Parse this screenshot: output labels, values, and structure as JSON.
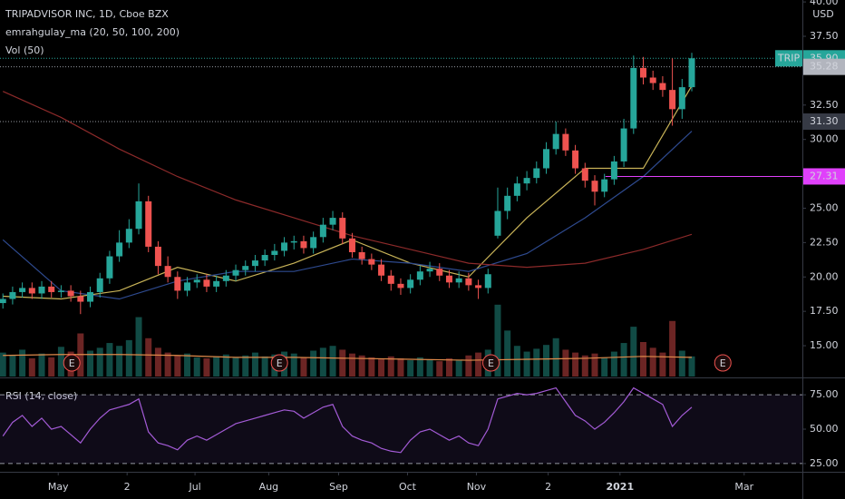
{
  "chart_data": {
    "type": "candlestick",
    "title": "TRIPADVISOR INC, 1D, Cboe BZX",
    "indicators": [
      "emrahgulay_ma (20, 50, 100, 200)",
      "Vol (50)"
    ],
    "currency": "USD",
    "up_color": "#26a69a",
    "down_color": "#ef5350",
    "xlim": [
      -0.3,
      82.4
    ],
    "xticks": [
      {
        "value": 5.7,
        "label": "May"
      },
      {
        "value": 12.8,
        "label": "2"
      },
      {
        "value": 19.8,
        "label": "Jul"
      },
      {
        "value": 27.4,
        "label": "Aug"
      },
      {
        "value": 34.6,
        "label": "Sep"
      },
      {
        "value": 41.7,
        "label": "Oct"
      },
      {
        "value": 48.8,
        "label": "Nov"
      },
      {
        "value": 56.2,
        "label": "2"
      },
      {
        "value": 63.6,
        "label": "2021"
      },
      {
        "value": 76.4,
        "label": "Mar"
      }
    ],
    "ylim": [
      12.76,
      40.14
    ],
    "yticks": [
      {
        "value": 15,
        "label": "15.00"
      },
      {
        "value": 17.5,
        "label": "17.50"
      },
      {
        "value": 20,
        "label": "20.00"
      },
      {
        "value": 22.5,
        "label": "22.50"
      },
      {
        "value": 25,
        "label": "25.00"
      },
      {
        "value": 30,
        "label": "30.00"
      },
      {
        "value": 32.5,
        "label": "32.50"
      },
      {
        "value": 37.5,
        "label": "37.50"
      },
      {
        "value": 40,
        "label": "40.00"
      }
    ],
    "open": [
      18.1,
      18.4,
      18.9,
      19.2,
      18.8,
      19.3,
      18.9,
      19.0,
      18.6,
      18.2,
      18.9,
      19.9,
      21.5,
      22.5,
      23.5,
      25.5,
      22.2,
      20.8,
      20.0,
      19.0,
      19.6,
      19.8,
      19.3,
      19.7,
      20.1,
      20.5,
      20.8,
      21.2,
      21.6,
      21.9,
      22.5,
      22.6,
      22.1,
      22.9,
      23.8,
      24.3,
      22.8,
      21.8,
      21.3,
      20.9,
      20.1,
      19.5,
      19.2,
      19.8,
      20.4,
      20.6,
      20.1,
      19.6,
      19.9,
      19.4,
      19.2,
      23.0,
      24.8,
      25.9,
      26.8,
      27.2,
      27.9,
      29.3,
      30.4,
      29.2,
      27.9,
      27.0,
      26.2,
      27.1,
      28.4,
      30.8,
      35.2,
      34.5,
      34.1,
      33.6,
      32.2,
      33.8
    ],
    "high": [
      18.8,
      19.3,
      19.6,
      19.6,
      19.7,
      19.7,
      19.4,
      19.4,
      19.0,
      19.3,
      20.3,
      21.9,
      23.4,
      24.2,
      26.8,
      25.9,
      22.6,
      21.5,
      20.4,
      20.0,
      20.2,
      20.2,
      20.1,
      20.5,
      20.9,
      21.2,
      21.6,
      22.0,
      22.4,
      22.9,
      23.0,
      23.0,
      23.3,
      24.3,
      24.8,
      24.7,
      23.2,
      22.2,
      21.7,
      21.3,
      20.5,
      19.9,
      20.2,
      20.8,
      21.1,
      21.0,
      20.5,
      20.4,
      20.3,
      19.8,
      20.6,
      26.5,
      26.5,
      27.3,
      27.7,
      28.4,
      29.8,
      31.3,
      30.8,
      29.6,
      28.3,
      27.4,
      27.5,
      28.8,
      31.5,
      36.1,
      36.0,
      35.0,
      34.6,
      35.9,
      34.4,
      36.3
    ],
    "low": [
      17.7,
      18.0,
      18.5,
      18.4,
      18.4,
      18.5,
      18.5,
      18.2,
      17.3,
      17.8,
      18.5,
      19.5,
      21.1,
      22.1,
      23.1,
      21.8,
      20.2,
      19.6,
      18.4,
      18.6,
      19.2,
      18.9,
      18.9,
      19.3,
      19.7,
      20.1,
      20.4,
      20.8,
      21.2,
      21.5,
      22.0,
      21.7,
      21.7,
      22.5,
      23.4,
      22.4,
      21.4,
      20.9,
      20.5,
      19.7,
      19.0,
      18.7,
      18.8,
      19.4,
      20.0,
      19.7,
      19.2,
      19.2,
      19.0,
      18.4,
      18.8,
      22.8,
      24.2,
      25.5,
      26.3,
      26.8,
      27.5,
      28.9,
      28.8,
      27.5,
      26.5,
      25.2,
      25.8,
      26.7,
      28.0,
      30.4,
      34.0,
      33.6,
      33.1,
      31.0,
      31.5,
      33.5
    ],
    "close": [
      18.4,
      18.9,
      19.2,
      18.8,
      19.3,
      18.9,
      19.0,
      18.6,
      18.2,
      18.9,
      19.9,
      21.5,
      22.5,
      23.5,
      25.5,
      22.2,
      20.8,
      20.0,
      19.0,
      19.6,
      19.8,
      19.3,
      19.7,
      20.1,
      20.5,
      20.8,
      21.2,
      21.6,
      21.9,
      22.5,
      22.6,
      22.1,
      22.9,
      23.8,
      24.3,
      22.8,
      21.8,
      21.3,
      20.9,
      20.1,
      19.5,
      19.2,
      19.8,
      20.4,
      20.6,
      20.1,
      19.6,
      19.9,
      19.4,
      19.2,
      20.2,
      24.8,
      25.9,
      26.8,
      27.2,
      27.9,
      29.3,
      30.4,
      29.2,
      27.9,
      27.0,
      26.2,
      27.1,
      28.4,
      30.8,
      35.2,
      34.5,
      34.1,
      33.6,
      32.2,
      33.8,
      35.9
    ],
    "ma_lines": [
      {
        "color": "#c9b458",
        "x": [
          0,
          6,
          12,
          18,
          24,
          30,
          36,
          42,
          48,
          54,
          60,
          66,
          71
        ],
        "values": [
          18.6,
          18.4,
          19.0,
          20.7,
          19.7,
          21.0,
          22.7,
          21.0,
          20.0,
          24.3,
          27.9,
          27.9,
          33.9
        ]
      },
      {
        "color": "#2e4a8f",
        "x": [
          0,
          6,
          12,
          18,
          24,
          30,
          36,
          42,
          48,
          54,
          60,
          66,
          71
        ],
        "values": [
          22.7,
          19.0,
          18.4,
          19.7,
          20.4,
          20.4,
          21.3,
          21.0,
          20.4,
          21.7,
          24.3,
          27.3,
          30.6
        ]
      },
      {
        "color": "#8c2a2a",
        "x": [
          0,
          6,
          12,
          18,
          24,
          30,
          36,
          42,
          48,
          54,
          60,
          66,
          71
        ],
        "values": [
          33.5,
          31.6,
          29.3,
          27.3,
          25.6,
          24.3,
          23.0,
          22.0,
          21.0,
          20.7,
          21.0,
          22.0,
          23.1
        ]
      }
    ],
    "volume": {
      "vlim": [
        0,
        9
      ],
      "values": [
        2.5,
        2.2,
        2.8,
        1.9,
        2.4,
        2.0,
        3.1,
        2.6,
        4.5,
        2.7,
        3.0,
        3.5,
        3.2,
        3.8,
        6.2,
        4.0,
        3.0,
        2.5,
        2.2,
        2.4,
        2.0,
        1.9,
        2.1,
        2.3,
        2.0,
        2.2,
        2.5,
        2.1,
        2.3,
        2.6,
        2.4,
        2.0,
        2.7,
        3.0,
        3.2,
        2.8,
        2.4,
        2.2,
        2.0,
        1.8,
        2.1,
        1.9,
        1.7,
        2.0,
        1.8,
        1.6,
        1.9,
        1.7,
        2.2,
        2.5,
        2.8,
        7.5,
        4.8,
        3.2,
        2.6,
        2.9,
        3.3,
        4.0,
        2.8,
        2.5,
        2.2,
        2.4,
        2.0,
        2.6,
        3.5,
        5.2,
        3.6,
        3.0,
        2.5,
        5.8,
        2.7,
        2.1
      ],
      "ma": {
        "color": "#e08a4a",
        "x": [
          0,
          6,
          12,
          18,
          24,
          30,
          36,
          42,
          48,
          54,
          60,
          66,
          71
        ],
        "values": [
          2.2,
          2.3,
          2.3,
          2.2,
          2.0,
          2.0,
          1.9,
          1.8,
          1.7,
          1.8,
          1.9,
          2.1,
          2.0
        ]
      }
    },
    "price_labels": [
      {
        "label": "TRIP",
        "value": 35.9,
        "value_label": "35.90",
        "color": "#26a69a",
        "text_color": "#ffffff",
        "line": "dotted"
      },
      {
        "value": 35.28,
        "value_label": "35.28",
        "color": "#b2b5be",
        "text_color": "#131722",
        "line": "dotted"
      },
      {
        "value": 31.3,
        "value_label": "31.30",
        "color": "#363a45",
        "text_color": "#d1d4dc",
        "line": "dotted"
      },
      {
        "value": 27.31,
        "value_label": "27.31",
        "color": "#e040fb",
        "text_color": "#ffffff",
        "line": "solid",
        "from": 62.1
      }
    ],
    "earnings": {
      "label": "E",
      "color": "#ef5350",
      "x": [
        7.1,
        28.5,
        50.3,
        74.2
      ]
    },
    "rsi": {
      "title": "RSI (14, close)",
      "color": "#a35bd6",
      "ylim": [
        19,
        85
      ],
      "yticks": [
        {
          "value": 25,
          "label": "25.00"
        },
        {
          "value": 50,
          "label": "50.00"
        },
        {
          "value": 75,
          "label": "75.00"
        }
      ],
      "band": [
        25,
        75
      ],
      "values": [
        45,
        55,
        60,
        52,
        58,
        50,
        52,
        46,
        40,
        50,
        58,
        64,
        66,
        68,
        72,
        48,
        40,
        38,
        35,
        42,
        45,
        42,
        46,
        50,
        54,
        56,
        58,
        60,
        62,
        64,
        63,
        58,
        62,
        66,
        68,
        52,
        45,
        42,
        40,
        36,
        34,
        33,
        42,
        48,
        50,
        46,
        42,
        45,
        40,
        38,
        50,
        72,
        74,
        76,
        75,
        76,
        78,
        80,
        70,
        60,
        56,
        50,
        55,
        62,
        70,
        80,
        76,
        72,
        68,
        52,
        60,
        66
      ]
    }
  }
}
